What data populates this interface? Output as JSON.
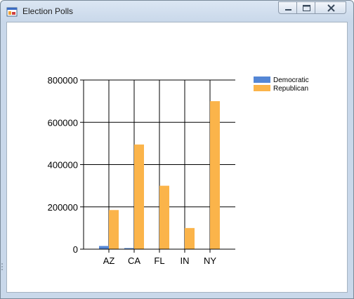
{
  "window": {
    "title": "Election Polls"
  },
  "colors": {
    "democratic": "#5486d5",
    "republican": "#fbb44a"
  },
  "chart_data": {
    "type": "bar",
    "categories": [
      "AZ",
      "CA",
      "FL",
      "IN",
      "NY"
    ],
    "series": [
      {
        "name": "Democratic",
        "values": [
          15000,
          5000,
          0,
          0,
          0
        ]
      },
      {
        "name": "Republican",
        "values": [
          185000,
          495000,
          300000,
          100000,
          700000
        ]
      }
    ],
    "ylim": [
      0,
      800000
    ],
    "yticks": [
      "800000",
      "600000",
      "400000",
      "200000",
      "0"
    ],
    "grid": true,
    "legend": "top-right"
  }
}
